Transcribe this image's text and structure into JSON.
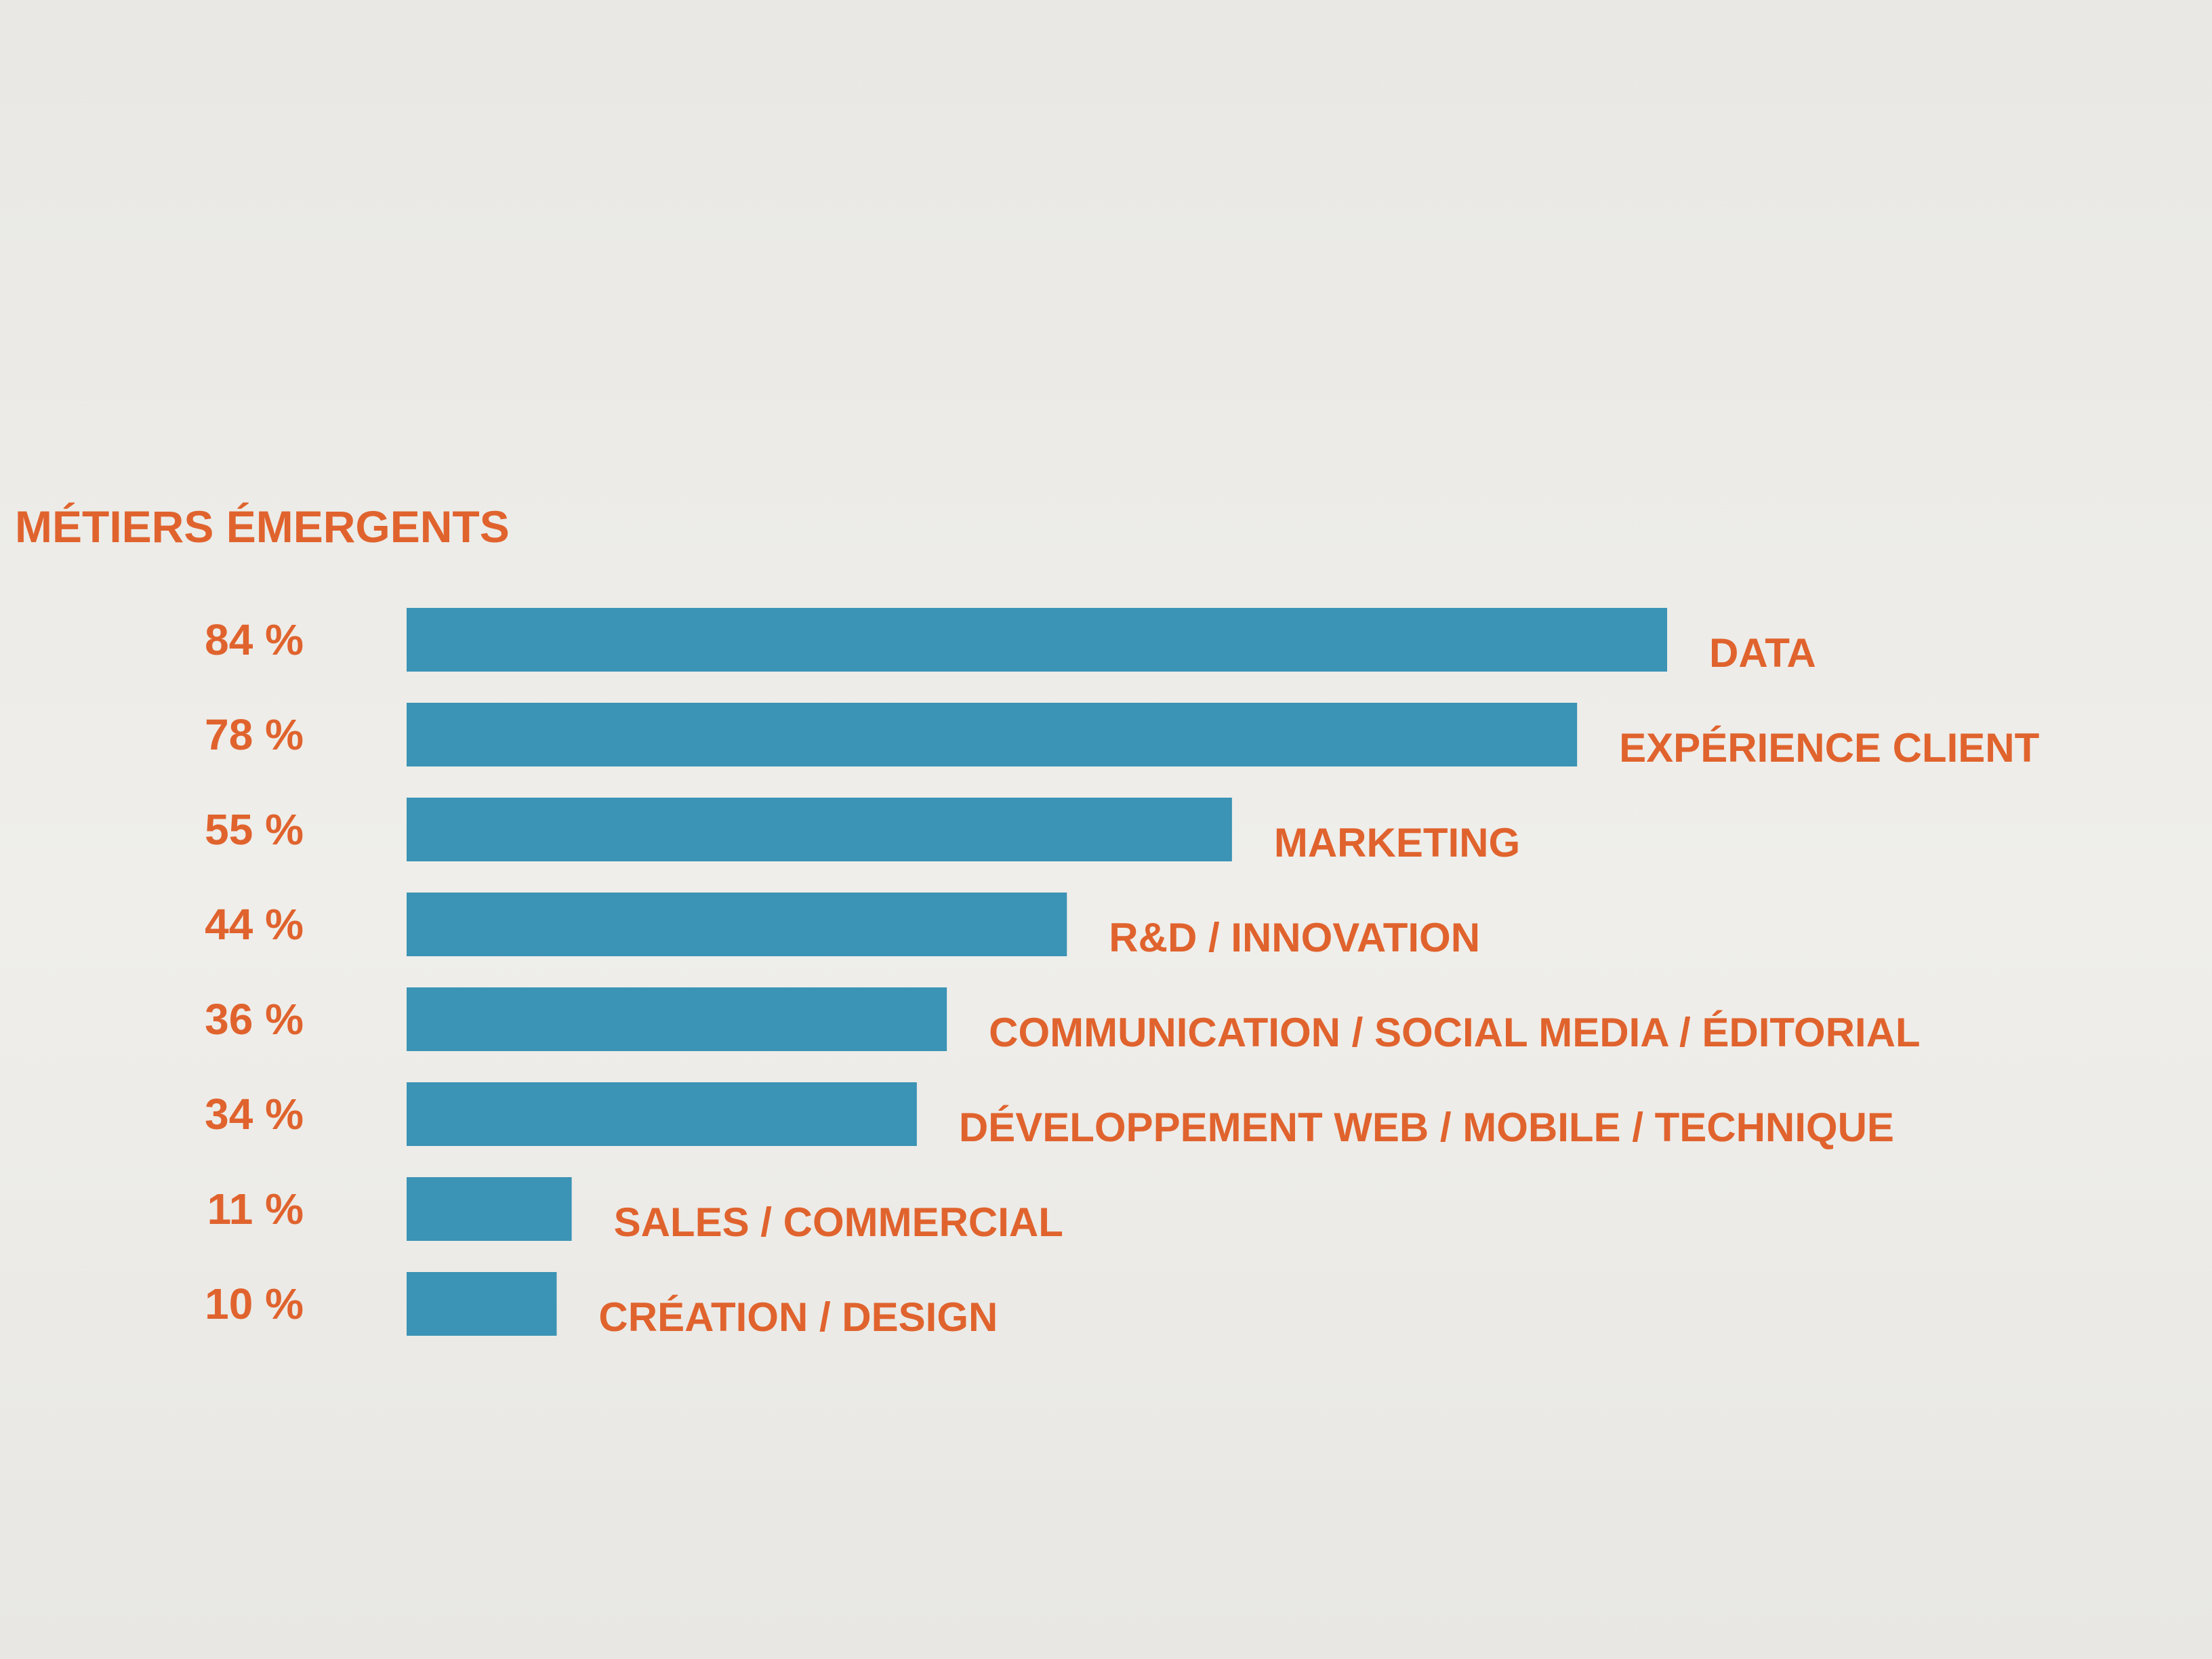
{
  "chart_data": {
    "type": "bar",
    "orientation": "horizontal",
    "title": "MÉTIERS ÉMERGENTS",
    "categories": [
      "DATA",
      "EXPÉRIENCE CLIENT",
      "MARKETING",
      "R&D / INNOVATION",
      "COMMUNICATION / SOCIAL MEDIA / ÉDITORIAL",
      "DÉVELOPPEMENT WEB / MOBILE / TECHNIQUE",
      "SALES / COMMERCIAL",
      "CRÉATION / DESIGN"
    ],
    "values": [
      84,
      78,
      55,
      44,
      36,
      34,
      11,
      10
    ],
    "value_labels": [
      "84 %",
      "78 %",
      "55 %",
      "44 %",
      "36 %",
      "34 %",
      "11 %",
      "10 %"
    ],
    "xlim": [
      0,
      100
    ],
    "grid": false,
    "legend": "none",
    "colors": {
      "bar": "#3b93b5",
      "text": "#e0632e",
      "background": "#ecebe7"
    }
  }
}
